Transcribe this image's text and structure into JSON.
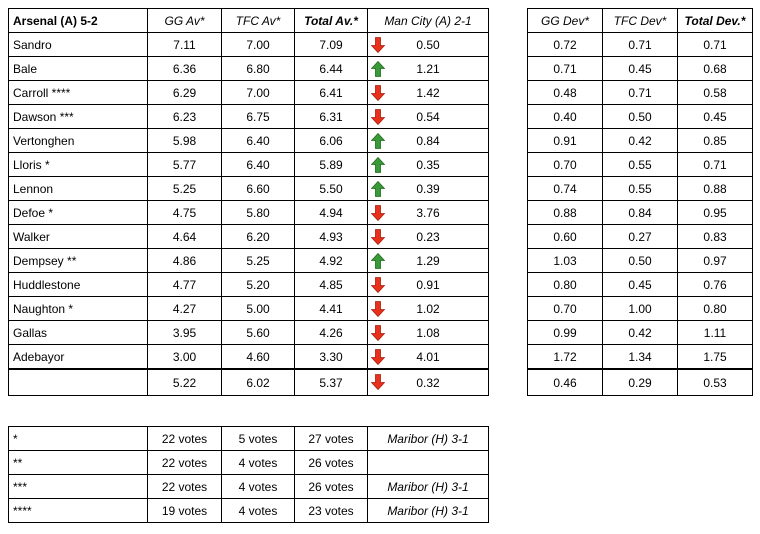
{
  "main": {
    "headers": {
      "title": "Arsenal (A) 5-2",
      "gg": "GG Av*",
      "tfc": "TFC Av*",
      "total": "Total Av.*",
      "mc": "Man City (A) 2-1"
    },
    "rows": [
      {
        "name": "Sandro",
        "gg": "7.11",
        "tfc": "7.00",
        "total": "7.09",
        "trend": "down",
        "mc": "0.50"
      },
      {
        "name": "Bale",
        "gg": "6.36",
        "tfc": "6.80",
        "total": "6.44",
        "trend": "up",
        "mc": "1.21"
      },
      {
        "name": "Carroll ****",
        "gg": "6.29",
        "tfc": "7.00",
        "total": "6.41",
        "trend": "down",
        "mc": "1.42"
      },
      {
        "name": "Dawson ***",
        "gg": "6.23",
        "tfc": "6.75",
        "total": "6.31",
        "trend": "down",
        "mc": "0.54"
      },
      {
        "name": "Vertonghen",
        "gg": "5.98",
        "tfc": "6.40",
        "total": "6.06",
        "trend": "up",
        "mc": "0.84"
      },
      {
        "name": "Lloris *",
        "gg": "5.77",
        "tfc": "6.40",
        "total": "5.89",
        "trend": "up",
        "mc": "0.35"
      },
      {
        "name": "Lennon",
        "gg": "5.25",
        "tfc": "6.60",
        "total": "5.50",
        "trend": "up",
        "mc": "0.39"
      },
      {
        "name": "Defoe *",
        "gg": "4.75",
        "tfc": "5.80",
        "total": "4.94",
        "trend": "down",
        "mc": "3.76"
      },
      {
        "name": "Walker",
        "gg": "4.64",
        "tfc": "6.20",
        "total": "4.93",
        "trend": "down",
        "mc": "0.23"
      },
      {
        "name": "Dempsey **",
        "gg": "4.86",
        "tfc": "5.25",
        "total": "4.92",
        "trend": "up",
        "mc": "1.29"
      },
      {
        "name": "Huddlestone",
        "gg": "4.77",
        "tfc": "5.20",
        "total": "4.85",
        "trend": "down",
        "mc": "0.91"
      },
      {
        "name": "Naughton *",
        "gg": "4.27",
        "tfc": "5.00",
        "total": "4.41",
        "trend": "down",
        "mc": "1.02"
      },
      {
        "name": "Gallas",
        "gg": "3.95",
        "tfc": "5.60",
        "total": "4.26",
        "trend": "down",
        "mc": "1.08"
      },
      {
        "name": "Adebayor",
        "gg": "3.00",
        "tfc": "4.60",
        "total": "3.30",
        "trend": "down",
        "mc": "4.01"
      }
    ],
    "totals": {
      "name": "",
      "gg": "5.22",
      "tfc": "6.02",
      "total": "5.37",
      "trend": "down",
      "mc": "0.32"
    }
  },
  "dev": {
    "headers": {
      "gg": "GG Dev*",
      "tfc": "TFC Dev*",
      "total": "Total Dev.*"
    },
    "rows": [
      {
        "gg": "0.72",
        "tfc": "0.71",
        "total": "0.71"
      },
      {
        "gg": "0.71",
        "tfc": "0.45",
        "total": "0.68"
      },
      {
        "gg": "0.48",
        "tfc": "0.71",
        "total": "0.58"
      },
      {
        "gg": "0.40",
        "tfc": "0.50",
        "total": "0.45"
      },
      {
        "gg": "0.91",
        "tfc": "0.42",
        "total": "0.85"
      },
      {
        "gg": "0.70",
        "tfc": "0.55",
        "total": "0.71"
      },
      {
        "gg": "0.74",
        "tfc": "0.55",
        "total": "0.88"
      },
      {
        "gg": "0.88",
        "tfc": "0.84",
        "total": "0.95"
      },
      {
        "gg": "0.60",
        "tfc": "0.27",
        "total": "0.83"
      },
      {
        "gg": "1.03",
        "tfc": "0.50",
        "total": "0.97"
      },
      {
        "gg": "0.80",
        "tfc": "0.45",
        "total": "0.76"
      },
      {
        "gg": "0.70",
        "tfc": "1.00",
        "total": "0.80"
      },
      {
        "gg": "0.99",
        "tfc": "0.42",
        "total": "1.11"
      },
      {
        "gg": "1.72",
        "tfc": "1.34",
        "total": "1.75"
      }
    ],
    "totals": {
      "gg": "0.46",
      "tfc": "0.29",
      "total": "0.53"
    }
  },
  "votes": {
    "rows": [
      {
        "key": "*",
        "gg": "22 votes",
        "tfc": "5 votes",
        "total": "27 votes",
        "match": "Maribor (H) 3-1"
      },
      {
        "key": "**",
        "gg": "22 votes",
        "tfc": "4 votes",
        "total": "26 votes",
        "match": ""
      },
      {
        "key": "***",
        "gg": "22 votes",
        "tfc": "4 votes",
        "total": "26 votes",
        "match": "Maribor (H) 3-1"
      },
      {
        "key": "****",
        "gg": "19 votes",
        "tfc": "4 votes",
        "total": "23 votes",
        "match": "Maribor (H) 3-1"
      }
    ]
  },
  "colors": {
    "up_arrow": "#3a9a3a",
    "down_arrow": "#e8301c"
  },
  "icons": {
    "up": "green-up-arrow-icon",
    "down": "red-down-arrow-icon"
  }
}
